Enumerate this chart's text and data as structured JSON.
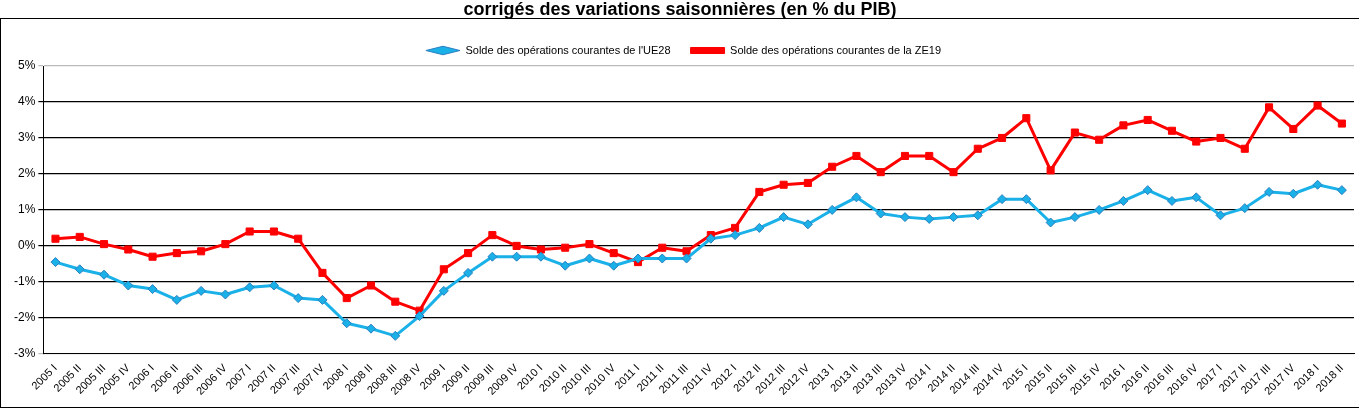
{
  "chart_data": {
    "type": "line",
    "title": "corrigés des variations saisonnières (en % du PIB)",
    "categories": [
      "2005 I",
      "2005 II",
      "2005 III",
      "2005 IV",
      "2006 I",
      "2006 II",
      "2006 III",
      "2006 IV",
      "2007 I",
      "2007 II",
      "2007 III",
      "2007 IV",
      "2008 I",
      "2008 II",
      "2008 III",
      "2008 IV",
      "2009 I",
      "2009 II",
      "2009 III",
      "2009 IV",
      "2010 I",
      "2010 II",
      "2010 III",
      "2010 IV",
      "2011 I",
      "2011 II",
      "2011 III",
      "2011 IV",
      "2012 I",
      "2012 II",
      "2012 III",
      "2012 IV",
      "2013 I",
      "2013 II",
      "2013 III",
      "2013 IV",
      "2014 I",
      "2014 II",
      "2014 III",
      "2014 IV",
      "2015 I",
      "2015 II",
      "2015 III",
      "2015 IV",
      "2016 I",
      "2016 II",
      "2016 III",
      "2016 IV",
      "2017 I",
      "2017 II",
      "2017 III",
      "2017 IV",
      "2018 I",
      "2018 II"
    ],
    "series": [
      {
        "name": "Solde des opérations courantes de l'UE28",
        "color": "#1ab0e8",
        "marker": "diamond",
        "values": [
          -0.45,
          -0.65,
          -0.8,
          -1.1,
          -1.2,
          -1.5,
          -1.25,
          -1.35,
          -1.15,
          -1.1,
          -1.45,
          -1.5,
          -2.15,
          -2.3,
          -2.5,
          -1.95,
          -1.25,
          -0.75,
          -0.3,
          -0.3,
          -0.3,
          -0.55,
          -0.35,
          -0.55,
          -0.35,
          -0.35,
          -0.35,
          0.2,
          0.3,
          0.5,
          0.8,
          0.6,
          1.0,
          1.35,
          0.9,
          0.8,
          0.75,
          0.8,
          0.85,
          1.3,
          1.3,
          0.65,
          0.8,
          1.0,
          1.25,
          1.55,
          1.25,
          1.35,
          0.85,
          1.05,
          1.5,
          1.45,
          1.7,
          1.55
        ]
      },
      {
        "name": "Solde des opérations courantes de la ZE19",
        "color": "#ff0000",
        "marker": "square",
        "values": [
          0.2,
          0.25,
          0.05,
          -0.1,
          -0.3,
          -0.2,
          -0.15,
          0.05,
          0.4,
          0.4,
          0.2,
          -0.75,
          -1.45,
          -1.1,
          -1.55,
          -1.8,
          -0.65,
          -0.2,
          0.3,
          0.0,
          -0.1,
          -0.05,
          0.05,
          -0.2,
          -0.45,
          -0.05,
          -0.15,
          0.3,
          0.5,
          1.5,
          1.7,
          1.75,
          2.2,
          2.5,
          2.05,
          2.5,
          2.5,
          2.05,
          2.7,
          3.0,
          3.55,
          2.1,
          3.15,
          2.95,
          3.35,
          3.5,
          3.2,
          2.9,
          3.0,
          2.7,
          3.85,
          3.25,
          3.9,
          3.4
        ]
      }
    ],
    "ylim": [
      -3,
      5
    ],
    "yticks": [
      {
        "value": -3,
        "label": "-3%"
      },
      {
        "value": -2,
        "label": "-2%"
      },
      {
        "value": -1,
        "label": "-1%"
      },
      {
        "value": 0,
        "label": "0%"
      },
      {
        "value": 1,
        "label": "1%"
      },
      {
        "value": 2,
        "label": "2%"
      },
      {
        "value": 3,
        "label": "3%"
      },
      {
        "value": 4,
        "label": "4%"
      },
      {
        "value": 5,
        "label": "5%"
      }
    ],
    "grid": "y",
    "legend": "top",
    "line_style": "solid"
  }
}
